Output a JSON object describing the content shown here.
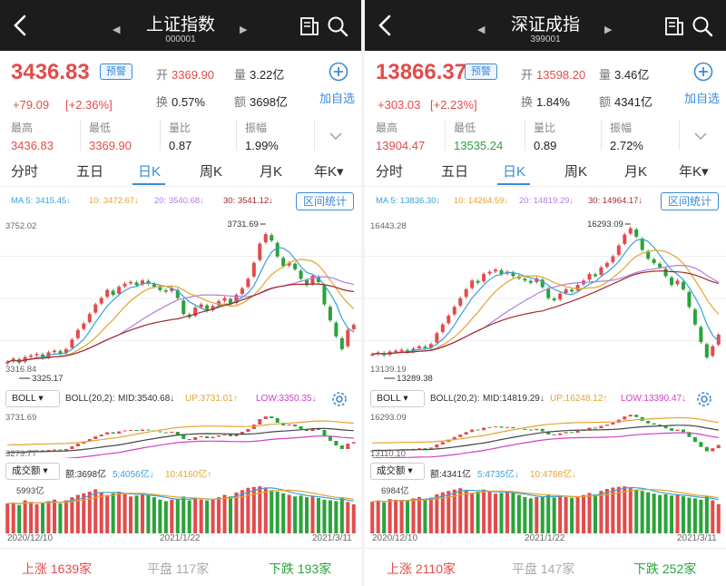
{
  "colors": {
    "up": "#e34b4b",
    "down": "#2aa33a",
    "accent": "#3b8ad9",
    "ma5": "#3aa0d8",
    "ma10": "#e4a330",
    "ma20": "#b27ce0",
    "ma30": "#a02a2a",
    "boll_mid": "#444444",
    "boll_up": "#e4a330",
    "boll_low": "#d040c8"
  },
  "panels": [
    {
      "title": "上证指数",
      "code": "000001",
      "price": "3436.83",
      "alert_label": "预警",
      "change": "+79.09",
      "change_pct": "[+2.36%]",
      "open_label": "开",
      "open": "3369.90",
      "vol_label": "量",
      "vol": "3.22亿",
      "turnover_label": "换",
      "turnover": "0.57%",
      "amount_label": "额",
      "amount": "3698亿",
      "add_fav": "加自选",
      "stats": [
        {
          "label": "最高",
          "value": "3436.83",
          "tone": "red"
        },
        {
          "label": "最低",
          "value": "3369.90",
          "tone": "red"
        },
        {
          "label": "量比",
          "value": "0.87",
          "tone": ""
        },
        {
          "label": "振幅",
          "value": "1.99%",
          "tone": ""
        }
      ],
      "tabs": [
        "分时",
        "五日",
        "日K",
        "周K",
        "月K",
        "年K▾"
      ],
      "active_tab": 2,
      "ma": {
        "ma5": "MA 5: 3415.45↓",
        "ma10": "10: 3472.67↓",
        "ma20": "20: 3540.68↓",
        "ma30": "30: 3541.12↓"
      },
      "range_btn": "区间统计",
      "k_labels": {
        "top_axis": "3752.02",
        "bottom_axis": "3316.84",
        "high_mark": "3731.69",
        "low_mark": "3325.17"
      },
      "boll_btn": "BOLL ▾",
      "boll_text": {
        "param": "BOLL(20,2):",
        "mid": "MID:3540.68↓",
        "up": "UP:3731.01↑",
        "low": "LOW:3350.35↓"
      },
      "boll_labels": {
        "top": "3731.69",
        "bottom": "3279.77"
      },
      "vol_btn": "成交额 ▾",
      "vol_text": {
        "amount": "额:3698亿",
        "ma5": "5:4056亿↓",
        "ma10": "10:4160亿↑"
      },
      "vol_label_top": "5993亿",
      "dates": [
        "2020/12/10",
        "2021/1/22",
        "2021/3/11"
      ],
      "footer": {
        "up": "上涨 1639家",
        "flat": "平盘 117家",
        "down": "下跌 193家"
      },
      "chart_data": {
        "type": "candlestick",
        "ylim": [
          3300,
          3760
        ],
        "values": [
          3320,
          3330,
          3318,
          3335,
          3340,
          3345,
          3332,
          3350,
          3355,
          3345,
          3360,
          3390,
          3420,
          3440,
          3470,
          3500,
          3520,
          3545,
          3530,
          3555,
          3565,
          3570,
          3560,
          3575,
          3565,
          3555,
          3545,
          3540,
          3550,
          3520,
          3470,
          3460,
          3490,
          3500,
          3480,
          3495,
          3510,
          3520,
          3500,
          3530,
          3550,
          3580,
          3630,
          3690,
          3720,
          3700,
          3650,
          3620,
          3630,
          3610,
          3580,
          3560,
          3590,
          3570,
          3500,
          3450,
          3400,
          3360,
          3420,
          3436
        ],
        "vol_ylim": [
          0,
          6000
        ],
        "volume": [
          3800,
          3900,
          3600,
          4200,
          4000,
          3700,
          3900,
          4100,
          4300,
          3800,
          4200,
          4600,
          4900,
          5100,
          5300,
          5600,
          5200,
          4900,
          5100,
          5300,
          5000,
          4700,
          4800,
          5000,
          4900,
          4600,
          4300,
          4100,
          4300,
          4400,
          4700,
          4200,
          4500,
          4300,
          4200,
          4400,
          4600,
          4900,
          4700,
          5200,
          5500,
          5800,
          5900,
          5993,
          5700,
          5500,
          5300,
          5100,
          4900,
          4700,
          4800,
          4600,
          4700,
          4500,
          4300,
          4200,
          4100,
          4600,
          4000,
          3698
        ]
      }
    },
    {
      "title": "深证成指",
      "code": "399001",
      "price": "13866.37",
      "alert_label": "预警",
      "change": "+303.03",
      "change_pct": "[+2.23%]",
      "open_label": "开",
      "open": "13598.20",
      "vol_label": "量",
      "vol": "3.46亿",
      "turnover_label": "换",
      "turnover": "1.84%",
      "amount_label": "额",
      "amount": "4341亿",
      "add_fav": "加自选",
      "stats": [
        {
          "label": "最高",
          "value": "13904.47",
          "tone": "red"
        },
        {
          "label": "最低",
          "value": "13535.24",
          "tone": "green"
        },
        {
          "label": "量比",
          "value": "0.89",
          "tone": ""
        },
        {
          "label": "振幅",
          "value": "2.72%",
          "tone": ""
        }
      ],
      "tabs": [
        "分时",
        "五日",
        "日K",
        "周K",
        "月K",
        "年K▾"
      ],
      "active_tab": 2,
      "ma": {
        "ma5": "MA 5: 13836.30↓",
        "ma10": "10: 14264.59↓",
        "ma20": "20: 14819.29↓",
        "ma30": "30: 14964.17↓"
      },
      "range_btn": "区间统计",
      "k_labels": {
        "top_axis": "16443.28",
        "bottom_axis": "13139.19",
        "high_mark": "16293.09",
        "low_mark": "13289.38"
      },
      "boll_btn": "BOLL ▾",
      "boll_text": {
        "param": "BOLL(20,2):",
        "mid": "MID:14819.29↓",
        "up": "UP:16248.12↑",
        "low": "LOW:13390.47↓"
      },
      "boll_labels": {
        "top": "16293.09",
        "bottom": "13110.10"
      },
      "vol_btn": "成交额 ▾",
      "vol_text": {
        "amount": "额:4341亿",
        "ma5": "5:4735亿↓",
        "ma10": "10:4768亿↓"
      },
      "vol_label_top": "6984亿",
      "dates": [
        "2020/12/10",
        "2021/1/22",
        "2021/3/11"
      ],
      "footer": {
        "up": "上涨 2110家",
        "flat": "平盘 147家",
        "down": "下跌 252家"
      },
      "chart_data": {
        "type": "candlestick",
        "ylim": [
          13100,
          16450
        ],
        "values": [
          13420,
          13460,
          13400,
          13480,
          13500,
          13520,
          13470,
          13550,
          13600,
          13560,
          13650,
          13900,
          14100,
          14300,
          14500,
          14700,
          14900,
          15100,
          15050,
          15250,
          15300,
          15350,
          15250,
          15300,
          15200,
          15150,
          15100,
          15050,
          15150,
          14950,
          14700,
          14650,
          14800,
          14900,
          14850,
          15000,
          15100,
          15250,
          15200,
          15400,
          15500,
          15650,
          15900,
          16150,
          16293,
          16100,
          15800,
          15600,
          15500,
          15400,
          15200,
          15000,
          15100,
          14900,
          14500,
          14100,
          13700,
          13350,
          13600,
          13866
        ],
        "vol_ylim": [
          0,
          7000
        ],
        "volume": [
          4700,
          4900,
          4600,
          5100,
          5000,
          4800,
          4900,
          5200,
          5400,
          5000,
          5300,
          5800,
          6100,
          6300,
          6500,
          6700,
          6400,
          6000,
          6200,
          6500,
          6200,
          5900,
          6000,
          6100,
          6000,
          5700,
          5400,
          5200,
          5400,
          5500,
          5800,
          5300,
          5600,
          5400,
          5300,
          5500,
          5700,
          6000,
          5800,
          6300,
          6600,
          6800,
          6900,
          6984,
          6700,
          6500,
          6300,
          6100,
          5900,
          5700,
          5800,
          5600,
          5700,
          5500,
          5300,
          5200,
          5000,
          5600,
          4900,
          4341
        ]
      }
    }
  ]
}
